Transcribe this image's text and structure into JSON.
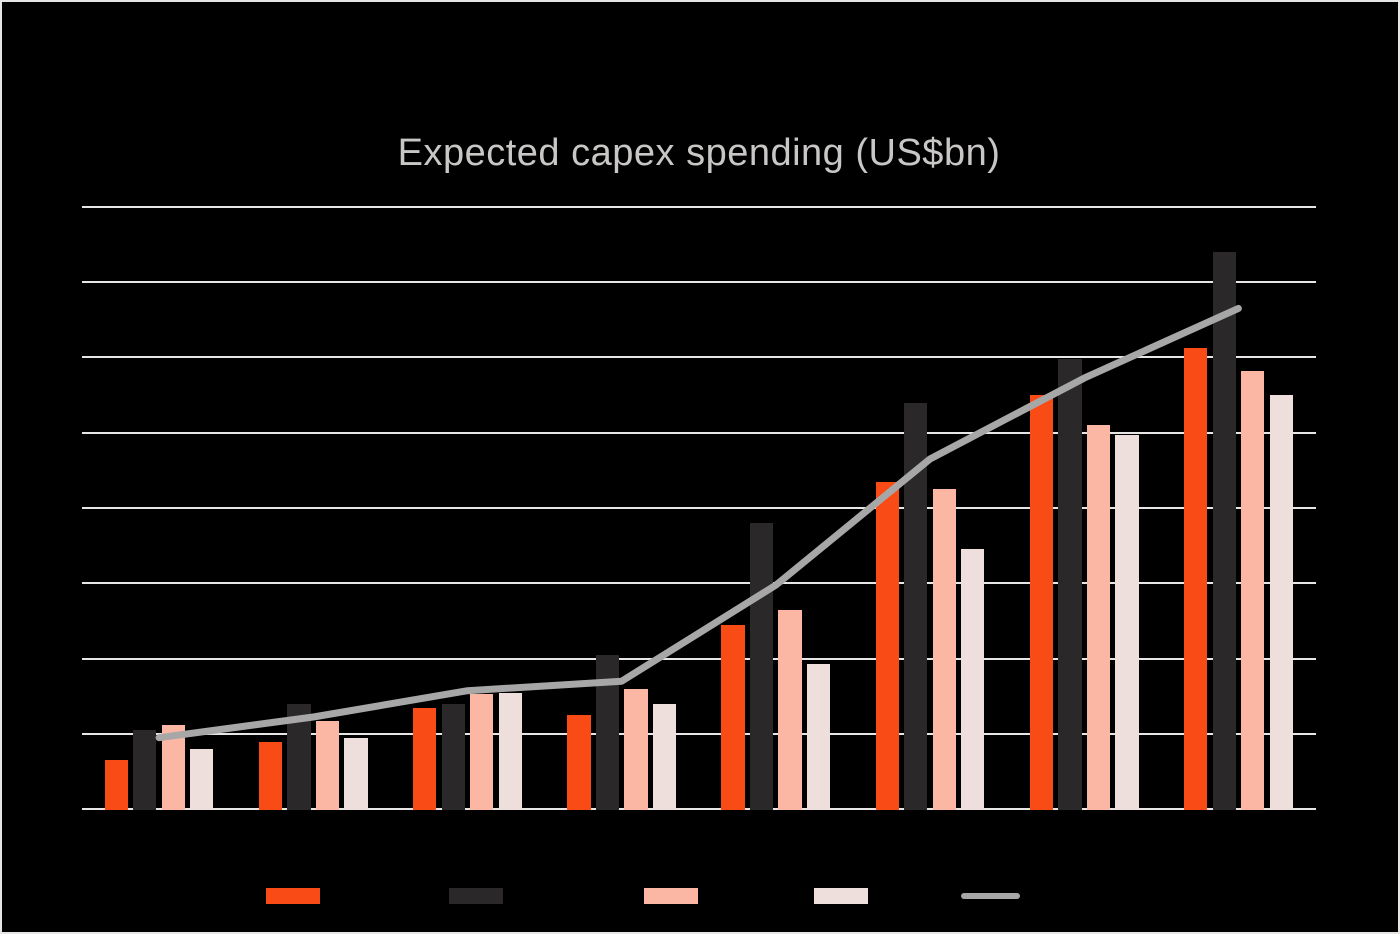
{
  "title": "Expected capex spending (US$bn)",
  "colors": {
    "background": "#000000",
    "frame_border": "#e7e5e3",
    "gridline": "#e8e6e4",
    "title_text": "#c9c7c5",
    "series_orange": "#f94b16",
    "series_dark": "#2a2829",
    "series_salmon": "#fbb7a4",
    "series_lightpink": "#eedfdd",
    "series_line_gray": "#a8a7a7"
  },
  "chart_data": {
    "type": "bar",
    "title": "Expected capex spending (US$bn)",
    "category_count": 8,
    "categories": [
      "",
      "",
      "",
      "",
      "",
      "",
      "",
      ""
    ],
    "category_labels_visible": false,
    "series": [
      {
        "name": "orange-bars",
        "type": "bar",
        "color": "#f94b16",
        "values": [
          13,
          18,
          27,
          25,
          49,
          87,
          110,
          122.5
        ]
      },
      {
        "name": "dark-bars",
        "type": "bar",
        "color": "#2a2829",
        "values": [
          21,
          28,
          28,
          41,
          76,
          108,
          119.5,
          148
        ]
      },
      {
        "name": "salmon-bars",
        "type": "bar",
        "color": "#fbb7a4",
        "values": [
          22.5,
          23.5,
          30.5,
          32,
          53,
          85,
          102,
          116.5
        ]
      },
      {
        "name": "lightpink-bars",
        "type": "bar",
        "color": "#eedfdd",
        "values": [
          16,
          19,
          31,
          28,
          38.5,
          69,
          99.5,
          110
        ]
      },
      {
        "name": "gray-trend-line",
        "type": "line",
        "color": "#a8a7a7",
        "values": [
          19,
          24.5,
          31.5,
          34,
          59.5,
          93,
          114.5,
          133
        ]
      }
    ],
    "y_axis": {
      "min": 0,
      "max": 160,
      "gridline_interval": 20,
      "gridline_count": 9,
      "tick_labels_visible": false
    },
    "grid": true,
    "legend_position": "bottom"
  },
  "legend": {
    "labels_visible": false,
    "items": [
      {
        "name": "orange-bars",
        "swatch_type": "bar",
        "swatch_color": "#f94b16"
      },
      {
        "name": "dark-bars",
        "swatch_type": "bar",
        "swatch_color": "#2a2829"
      },
      {
        "name": "salmon-bars",
        "swatch_type": "bar",
        "swatch_color": "#fbb7a4"
      },
      {
        "name": "lightpink-bars",
        "swatch_type": "bar",
        "swatch_color": "#eedfdd"
      },
      {
        "name": "gray-trend-line",
        "swatch_type": "line",
        "swatch_color": "#a8a7a7"
      }
    ]
  }
}
